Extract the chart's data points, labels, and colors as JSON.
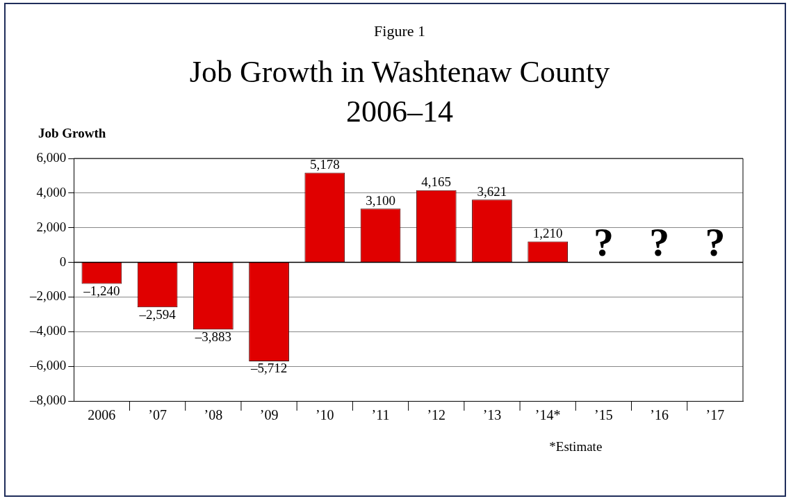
{
  "chart_data": {
    "type": "bar",
    "title": "Job Growth in Washtenaw County\n2006–14",
    "subtitle": "Figure 1",
    "ylabel": "Job Growth",
    "categories": [
      "2006",
      "’07",
      "’08",
      "’09",
      "’10",
      "’11",
      "’12",
      "’13",
      "’14*",
      "’15",
      "’16",
      "’17"
    ],
    "values": [
      -1240,
      -2594,
      -3883,
      -5712,
      5178,
      3100,
      4165,
      3621,
      1210,
      null,
      null,
      null
    ],
    "value_labels": [
      "–1,240",
      "–2,594",
      "–3,883",
      "–5,712",
      "5,178",
      "3,100",
      "4,165",
      "3,621",
      "1,210",
      null,
      null,
      null
    ],
    "color": "#e00000",
    "ylim": [
      -8000,
      6000
    ],
    "yticks": [
      {
        "value": -8000,
        "label": "–8,000"
      },
      {
        "value": -6000,
        "label": "–6,000"
      },
      {
        "value": -4000,
        "label": "–4,000"
      },
      {
        "value": -2000,
        "label": "–2,000"
      },
      {
        "value": 0,
        "label": "0"
      },
      {
        "value": 2000,
        "label": "2,000"
      },
      {
        "value": 4000,
        "label": "4,000"
      },
      {
        "value": 6000,
        "label": "6,000"
      }
    ],
    "grid": "y",
    "annotations": [
      "*Estimate",
      "?",
      "?",
      "?"
    ]
  }
}
